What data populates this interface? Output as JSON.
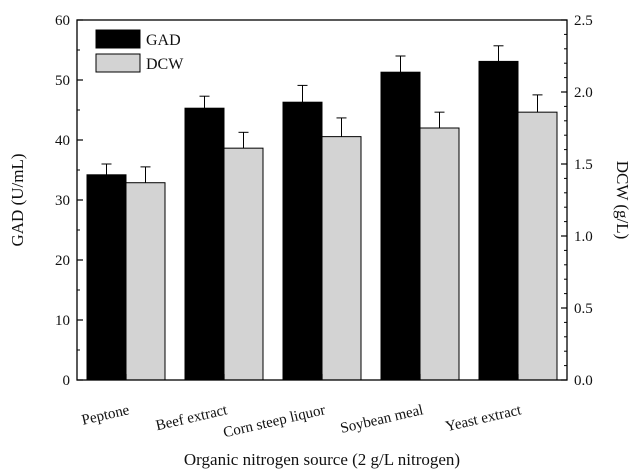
{
  "chart_data": {
    "type": "bar",
    "categories": [
      "Peptone",
      "Beef extract",
      "Corn steep liquor",
      "Soybean meal",
      "Yeast extract"
    ],
    "series": [
      {
        "name": "GAD",
        "axis": "left",
        "color": "#000000",
        "values": [
          34.2,
          45.3,
          46.3,
          51.3,
          53.1
        ],
        "errors": [
          1.8,
          2.0,
          2.8,
          2.7,
          2.6
        ]
      },
      {
        "name": "DCW",
        "axis": "right",
        "color": "#d3d3d3",
        "values": [
          1.37,
          1.61,
          1.69,
          1.75,
          1.86
        ],
        "errors": [
          0.11,
          0.11,
          0.13,
          0.11,
          0.12
        ]
      }
    ],
    "xlabel": "Organic nitrogen source (2 g/L nitrogen)",
    "ylabel_left": "GAD (U/mL)",
    "ylabel_right": "DCW (g/L)",
    "ylim_left": [
      0,
      60
    ],
    "ylim_right": [
      0,
      2.5
    ],
    "yticks_left": [
      "0",
      "10",
      "20",
      "30",
      "40",
      "50",
      "60"
    ],
    "yticks_right": [
      "0.0",
      "0.5",
      "1.0",
      "1.5",
      "2.0",
      "2.5"
    ],
    "grid": false,
    "legend_position": "top-left"
  }
}
